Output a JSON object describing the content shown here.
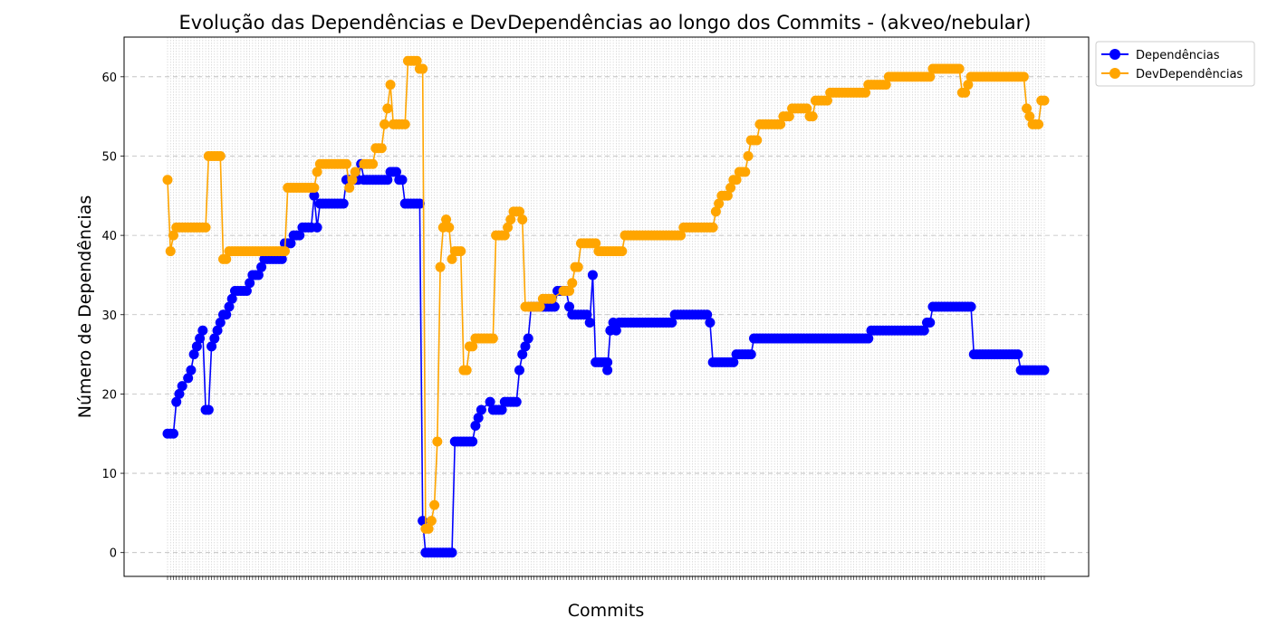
{
  "chart_data": {
    "type": "line",
    "title": "Evolução das Dependências e DevDependências ao longo dos Commits - (akveo/nebular)",
    "xlabel": "Commits",
    "ylabel": "Número de Dependências",
    "ylim": [
      -3,
      65
    ],
    "yticks": [
      0,
      10,
      20,
      30,
      40,
      50,
      60
    ],
    "x_count": 300,
    "grid": "y dashed; dense dotted vertical line per commit",
    "legend": "upper-right, outside plot",
    "series": [
      {
        "name": "Dependências",
        "color": "#0000ff",
        "segments": [
          [
            0,
            15
          ],
          [
            2,
            15
          ],
          [
            3,
            19
          ],
          [
            4,
            20
          ],
          [
            5,
            21
          ],
          [
            7,
            22
          ],
          [
            8,
            23
          ],
          [
            9,
            25
          ],
          [
            10,
            26
          ],
          [
            11,
            27
          ],
          [
            12,
            28
          ],
          [
            13,
            18
          ],
          [
            14,
            18
          ],
          [
            15,
            26
          ],
          [
            16,
            27
          ],
          [
            17,
            28
          ],
          [
            18,
            29
          ],
          [
            19,
            30
          ],
          [
            20,
            30
          ],
          [
            21,
            31
          ],
          [
            22,
            32
          ],
          [
            23,
            33
          ],
          [
            27,
            33
          ],
          [
            28,
            34
          ],
          [
            29,
            35
          ],
          [
            31,
            35
          ],
          [
            32,
            36
          ],
          [
            33,
            37
          ],
          [
            39,
            37
          ],
          [
            40,
            39
          ],
          [
            42,
            39
          ],
          [
            43,
            40
          ],
          [
            45,
            40
          ],
          [
            46,
            41
          ],
          [
            49,
            41
          ],
          [
            50,
            45
          ],
          [
            51,
            41
          ],
          [
            52,
            44
          ],
          [
            60,
            44
          ],
          [
            61,
            47
          ],
          [
            65,
            47
          ],
          [
            66,
            49
          ],
          [
            67,
            47
          ],
          [
            75,
            47
          ],
          [
            76,
            48
          ],
          [
            78,
            48
          ],
          [
            79,
            47
          ],
          [
            80,
            47
          ],
          [
            81,
            44
          ],
          [
            86,
            44
          ],
          [
            87,
            4
          ],
          [
            88,
            0
          ],
          [
            97,
            0
          ],
          [
            98,
            14
          ],
          [
            104,
            14
          ],
          [
            105,
            16
          ],
          [
            106,
            17
          ],
          [
            107,
            18
          ],
          [
            110,
            19
          ],
          [
            111,
            18
          ],
          [
            114,
            18
          ],
          [
            115,
            19
          ],
          [
            119,
            19
          ],
          [
            120,
            23
          ],
          [
            121,
            25
          ],
          [
            122,
            26
          ],
          [
            123,
            27
          ],
          [
            124,
            31
          ],
          [
            132,
            31
          ],
          [
            133,
            33
          ],
          [
            136,
            33
          ],
          [
            137,
            31
          ],
          [
            138,
            30
          ],
          [
            143,
            30
          ],
          [
            144,
            29
          ],
          [
            145,
            35
          ],
          [
            146,
            24
          ],
          [
            150,
            24
          ],
          [
            150,
            23
          ],
          [
            151,
            28
          ],
          [
            152,
            29
          ],
          [
            153,
            28
          ],
          [
            154,
            29
          ],
          [
            172,
            29
          ],
          [
            173,
            30
          ],
          [
            184,
            30
          ],
          [
            185,
            29
          ],
          [
            186,
            24
          ],
          [
            193,
            24
          ],
          [
            194,
            25
          ],
          [
            199,
            25
          ],
          [
            200,
            27
          ],
          [
            239,
            27
          ],
          [
            240,
            28
          ],
          [
            258,
            28
          ],
          [
            259,
            29
          ],
          [
            260,
            29
          ],
          [
            261,
            31
          ],
          [
            274,
            31
          ],
          [
            275,
            25
          ],
          [
            290,
            25
          ],
          [
            291,
            23
          ],
          [
            299,
            23
          ]
        ]
      },
      {
        "name": "DevDependências",
        "color": "#ffa500",
        "segments": [
          [
            0,
            47
          ],
          [
            1,
            38
          ],
          [
            2,
            40
          ],
          [
            3,
            41
          ],
          [
            12,
            41
          ],
          [
            13,
            41
          ],
          [
            14,
            50
          ],
          [
            18,
            50
          ],
          [
            19,
            37
          ],
          [
            20,
            37
          ],
          [
            21,
            38
          ],
          [
            40,
            38
          ],
          [
            41,
            46
          ],
          [
            50,
            46
          ],
          [
            51,
            48
          ],
          [
            52,
            49
          ],
          [
            61,
            49
          ],
          [
            62,
            46
          ],
          [
            63,
            47
          ],
          [
            64,
            48
          ],
          [
            67,
            49
          ],
          [
            70,
            49
          ],
          [
            71,
            51
          ],
          [
            73,
            51
          ],
          [
            74,
            54
          ],
          [
            75,
            56
          ],
          [
            76,
            59
          ],
          [
            77,
            54
          ],
          [
            81,
            54
          ],
          [
            82,
            62
          ],
          [
            85,
            62
          ],
          [
            86,
            61
          ],
          [
            87,
            61
          ],
          [
            88,
            3
          ],
          [
            89,
            3
          ],
          [
            90,
            4
          ],
          [
            91,
            6
          ],
          [
            92,
            14
          ],
          [
            93,
            36
          ],
          [
            94,
            41
          ],
          [
            95,
            42
          ],
          [
            96,
            41
          ],
          [
            97,
            37
          ],
          [
            98,
            38
          ],
          [
            100,
            38
          ],
          [
            101,
            23
          ],
          [
            102,
            23
          ],
          [
            103,
            26
          ],
          [
            104,
            26
          ],
          [
            105,
            27
          ],
          [
            111,
            27
          ],
          [
            112,
            40
          ],
          [
            115,
            40
          ],
          [
            116,
            41
          ],
          [
            117,
            42
          ],
          [
            118,
            43
          ],
          [
            120,
            43
          ],
          [
            121,
            42
          ],
          [
            122,
            31
          ],
          [
            127,
            31
          ],
          [
            128,
            32
          ],
          [
            130,
            32
          ],
          [
            131,
            32
          ],
          [
            135,
            33
          ],
          [
            137,
            33
          ],
          [
            138,
            34
          ],
          [
            139,
            36
          ],
          [
            140,
            36
          ],
          [
            141,
            39
          ],
          [
            146,
            39
          ],
          [
            147,
            38
          ],
          [
            155,
            38
          ],
          [
            156,
            40
          ],
          [
            175,
            40
          ],
          [
            176,
            41
          ],
          [
            186,
            41
          ],
          [
            187,
            43
          ],
          [
            188,
            44
          ],
          [
            189,
            45
          ],
          [
            191,
            45
          ],
          [
            192,
            46
          ],
          [
            193,
            47
          ],
          [
            194,
            47
          ],
          [
            195,
            48
          ],
          [
            197,
            48
          ],
          [
            198,
            50
          ],
          [
            199,
            52
          ],
          [
            201,
            52
          ],
          [
            202,
            54
          ],
          [
            209,
            54
          ],
          [
            210,
            55
          ],
          [
            212,
            55
          ],
          [
            213,
            56
          ],
          [
            218,
            56
          ],
          [
            219,
            55
          ],
          [
            220,
            55
          ],
          [
            221,
            57
          ],
          [
            225,
            57
          ],
          [
            226,
            58
          ],
          [
            238,
            58
          ],
          [
            239,
            59
          ],
          [
            245,
            59
          ],
          [
            246,
            60
          ],
          [
            260,
            60
          ],
          [
            261,
            61
          ],
          [
            270,
            61
          ],
          [
            271,
            58
          ],
          [
            272,
            58
          ],
          [
            273,
            59
          ],
          [
            274,
            60
          ],
          [
            292,
            60
          ],
          [
            293,
            56
          ],
          [
            294,
            55
          ],
          [
            295,
            54
          ],
          [
            297,
            54
          ],
          [
            298,
            57
          ],
          [
            299,
            57
          ]
        ]
      }
    ]
  }
}
